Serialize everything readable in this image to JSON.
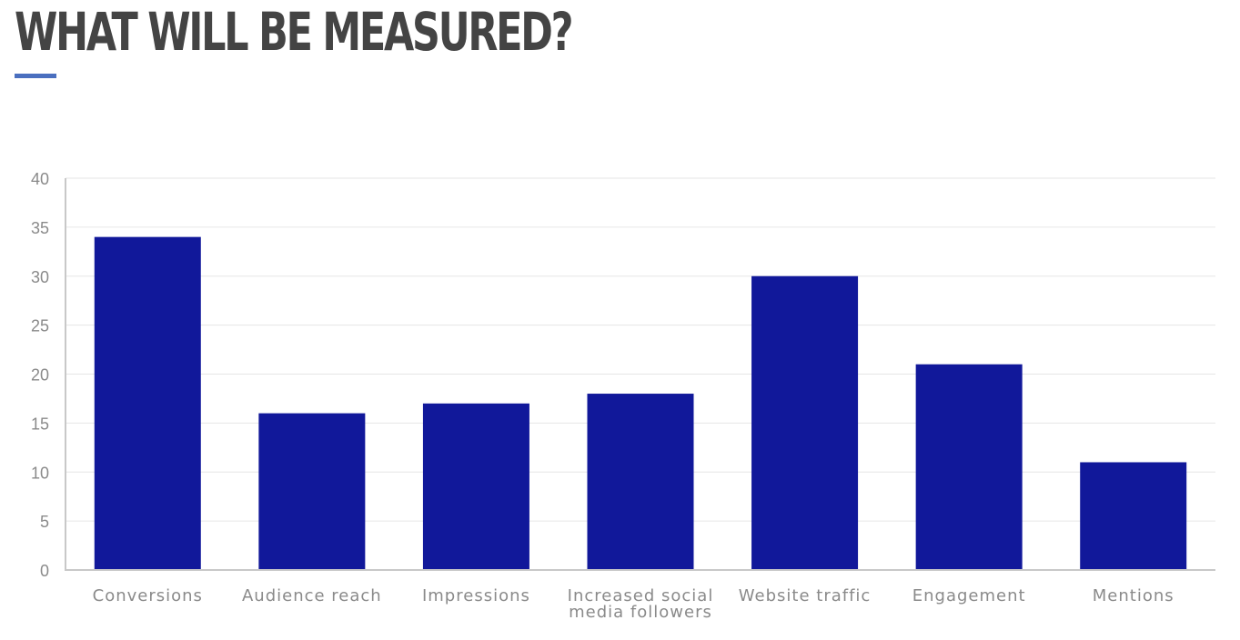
{
  "title": "WHAT WILL BE MEASURED?",
  "colors": {
    "title": "#444444",
    "accent": "#4a6fbf",
    "bar": "#11189a",
    "grid": "#e6e6e6",
    "axis": "#c8c8c8",
    "label": "#8a8a8a"
  },
  "chart_data": {
    "type": "bar",
    "title": "",
    "xlabel": "",
    "ylabel": "",
    "categories": [
      "Conversions",
      "Audience reach",
      "Impressions",
      "Increased social media followers",
      "Website traffic",
      "Engagement",
      "Mentions"
    ],
    "category_lines": [
      [
        "Conversions"
      ],
      [
        "Audience reach"
      ],
      [
        "Impressions"
      ],
      [
        "Increased social",
        "media followers"
      ],
      [
        "Website traffic"
      ],
      [
        "Engagement"
      ],
      [
        "Mentions"
      ]
    ],
    "values": [
      34,
      16,
      17,
      18,
      30,
      21,
      11
    ],
    "ylim": [
      0,
      40
    ],
    "yticks": [
      0,
      5,
      10,
      15,
      20,
      25,
      30,
      35,
      40
    ],
    "grid": true,
    "legend": "none"
  }
}
